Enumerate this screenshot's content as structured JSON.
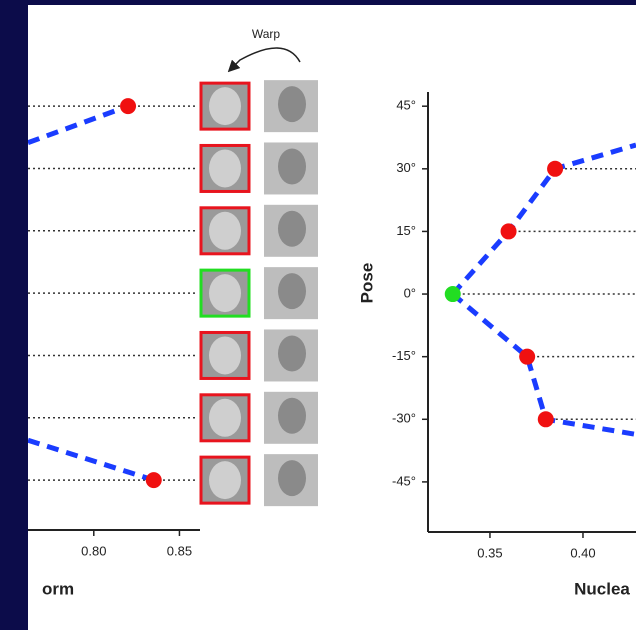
{
  "chart_data": [
    {
      "type": "line",
      "annotation": "Warp",
      "x_label": "orm",
      "xlim": [
        0.7616,
        0.862
      ],
      "ylim": [
        -57,
        48.4
      ],
      "xticks": [
        {
          "value": 0.8,
          "label": "0.80"
        },
        0.85
      ],
      "pose": [
        45,
        30,
        15,
        0,
        -15,
        -30,
        -45
      ],
      "face_border": [
        "#e8141e",
        "#e8141e",
        "#e8141e",
        "#22dd22",
        "#e8141e",
        "#e8141e",
        "#e8141e"
      ],
      "series": [
        {
          "color": "#1a3cff",
          "x": [
            0.7616,
            0.82
          ],
          "values": [
            36.2,
            45
          ]
        },
        {
          "color": "#1a3cff",
          "x": [
            0.7616,
            0.835
          ],
          "values": [
            -35.4,
            -45
          ]
        },
        {
          "color": "#f01010",
          "marker": true,
          "x": [
            0.82,
            0.835
          ],
          "values": [
            45,
            -45
          ]
        }
      ]
    },
    {
      "type": "line",
      "x_label": "Nuclea",
      "y_label": "Pose",
      "xlim": [
        0.3167,
        0.4285
      ],
      "ylim": [
        -57,
        48.4
      ],
      "xticks": [
        0.35,
        {
          "value": 0.4,
          "label": "0.40"
        }
      ],
      "yticks": [
        {
          "value": 45,
          "label": "45°"
        },
        {
          "value": 30,
          "label": "30°"
        },
        {
          "value": 15,
          "label": "15°"
        },
        {
          "value": 0,
          "label": "0°"
        },
        {
          "value": -15,
          "label": "-15°"
        },
        {
          "value": -30,
          "label": "-30°"
        },
        {
          "value": -45,
          "label": "-45°"
        }
      ],
      "series": [
        {
          "color": "#1a3cff",
          "x": [
            0.33,
            0.36,
            0.385,
            0.4285
          ],
          "values": [
            0,
            15,
            30,
            35.7
          ]
        },
        {
          "color": "#1a3cff",
          "x": [
            0.33,
            0.37,
            0.38,
            0.4295
          ],
          "values": [
            0,
            -15,
            -30,
            -33.7
          ]
        },
        {
          "color": "#f01010",
          "marker": true,
          "x": [
            0.36,
            0.385,
            0.37,
            0.38
          ],
          "values": [
            15,
            30,
            -15,
            -30
          ]
        },
        {
          "color": "#22dd22",
          "marker": true,
          "x": [
            0.33
          ],
          "values": [
            0
          ]
        }
      ]
    }
  ]
}
